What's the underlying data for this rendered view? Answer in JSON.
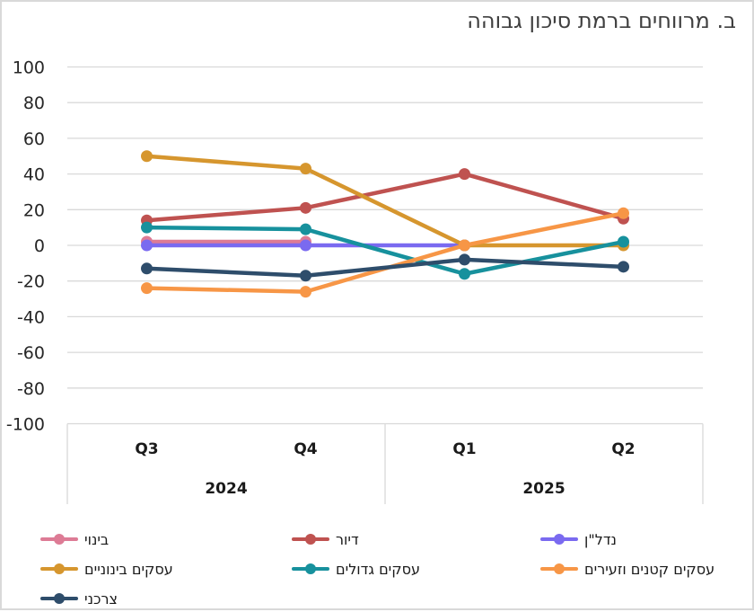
{
  "chart_data": {
    "type": "line",
    "title": "ב. מרווחים ברמת סיכון גבוהה",
    "categories": [
      "Q3",
      "Q4",
      "Q1",
      "Q2"
    ],
    "category_groups": [
      {
        "label": "2024",
        "span": 2
      },
      {
        "label": "2025",
        "span": 2
      }
    ],
    "ylim": [
      -100,
      100
    ],
    "yticks": [
      100,
      80,
      60,
      40,
      20,
      0,
      -20,
      -40,
      -60,
      -80,
      -100
    ],
    "grid": "horizontal",
    "legend_position": "bottom-left",
    "direction": "rtl",
    "series": [
      {
        "name": "בינוי",
        "key": "construction",
        "color": "#dd7b95",
        "values": [
          2,
          2,
          null,
          null
        ]
      },
      {
        "name": "דיור",
        "key": "housing",
        "color": "#bf5250",
        "values": [
          14,
          21,
          40,
          15
        ]
      },
      {
        "name": "נדל\"ן",
        "key": "real-estate",
        "color": "#7a6af0",
        "values": [
          0,
          0,
          0,
          null
        ]
      },
      {
        "name": "עסקים בינוניים",
        "key": "medium-businesses",
        "color": "#d6962e",
        "values": [
          50,
          43,
          0,
          0
        ]
      },
      {
        "name": "עסקים גדולים",
        "key": "large-businesses",
        "color": "#17919d",
        "values": [
          10,
          9,
          -16,
          2
        ]
      },
      {
        "name": "עסקים קטנים וזעירים",
        "key": "small-micro-businesses",
        "color": "#f79646",
        "values": [
          -24,
          -26,
          0,
          18
        ]
      },
      {
        "name": "צרכני",
        "key": "consumer",
        "color": "#2e4d6b",
        "values": [
          -13,
          -17,
          -8,
          -12
        ]
      }
    ],
    "styles": {
      "grid_color": "#d9d9d9",
      "axis_text_color": "#262626",
      "category_text_color": "#1a1a1a",
      "title_color": "#3f3f3f"
    }
  }
}
